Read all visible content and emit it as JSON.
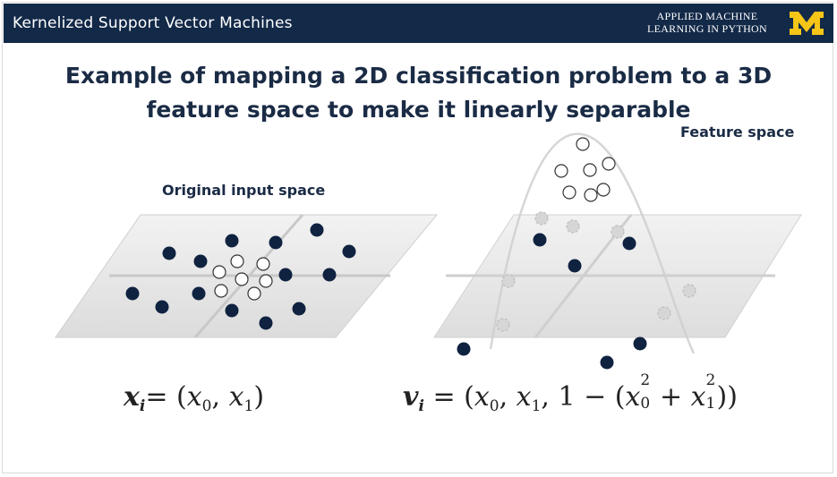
{
  "header": {
    "title": "Kernelized Support Vector Machines",
    "course_line1": "APPLIED MACHINE",
    "course_line2": "LEARNING IN PYTHON",
    "logo": "university-michigan-block-m",
    "bar_color": "#132948",
    "logo_color": "#f5c518"
  },
  "slide": {
    "title_line1": "Example of mapping a 2D classification problem to a 3D",
    "title_line2": "feature space to make it linearly separable"
  },
  "diagram": {
    "original_label": "Original input space",
    "feature_label": "Feature space",
    "dark_point_color": "#0f2240",
    "light_point_color": "#ffffff"
  },
  "formulas": {
    "left": {
      "var": "x",
      "index": "i",
      "rest": "= (x0, x1)"
    },
    "right": {
      "var": "v",
      "index": "i",
      "rest": "= (x0, x1, 1 − (x0² + x1²))"
    }
  }
}
